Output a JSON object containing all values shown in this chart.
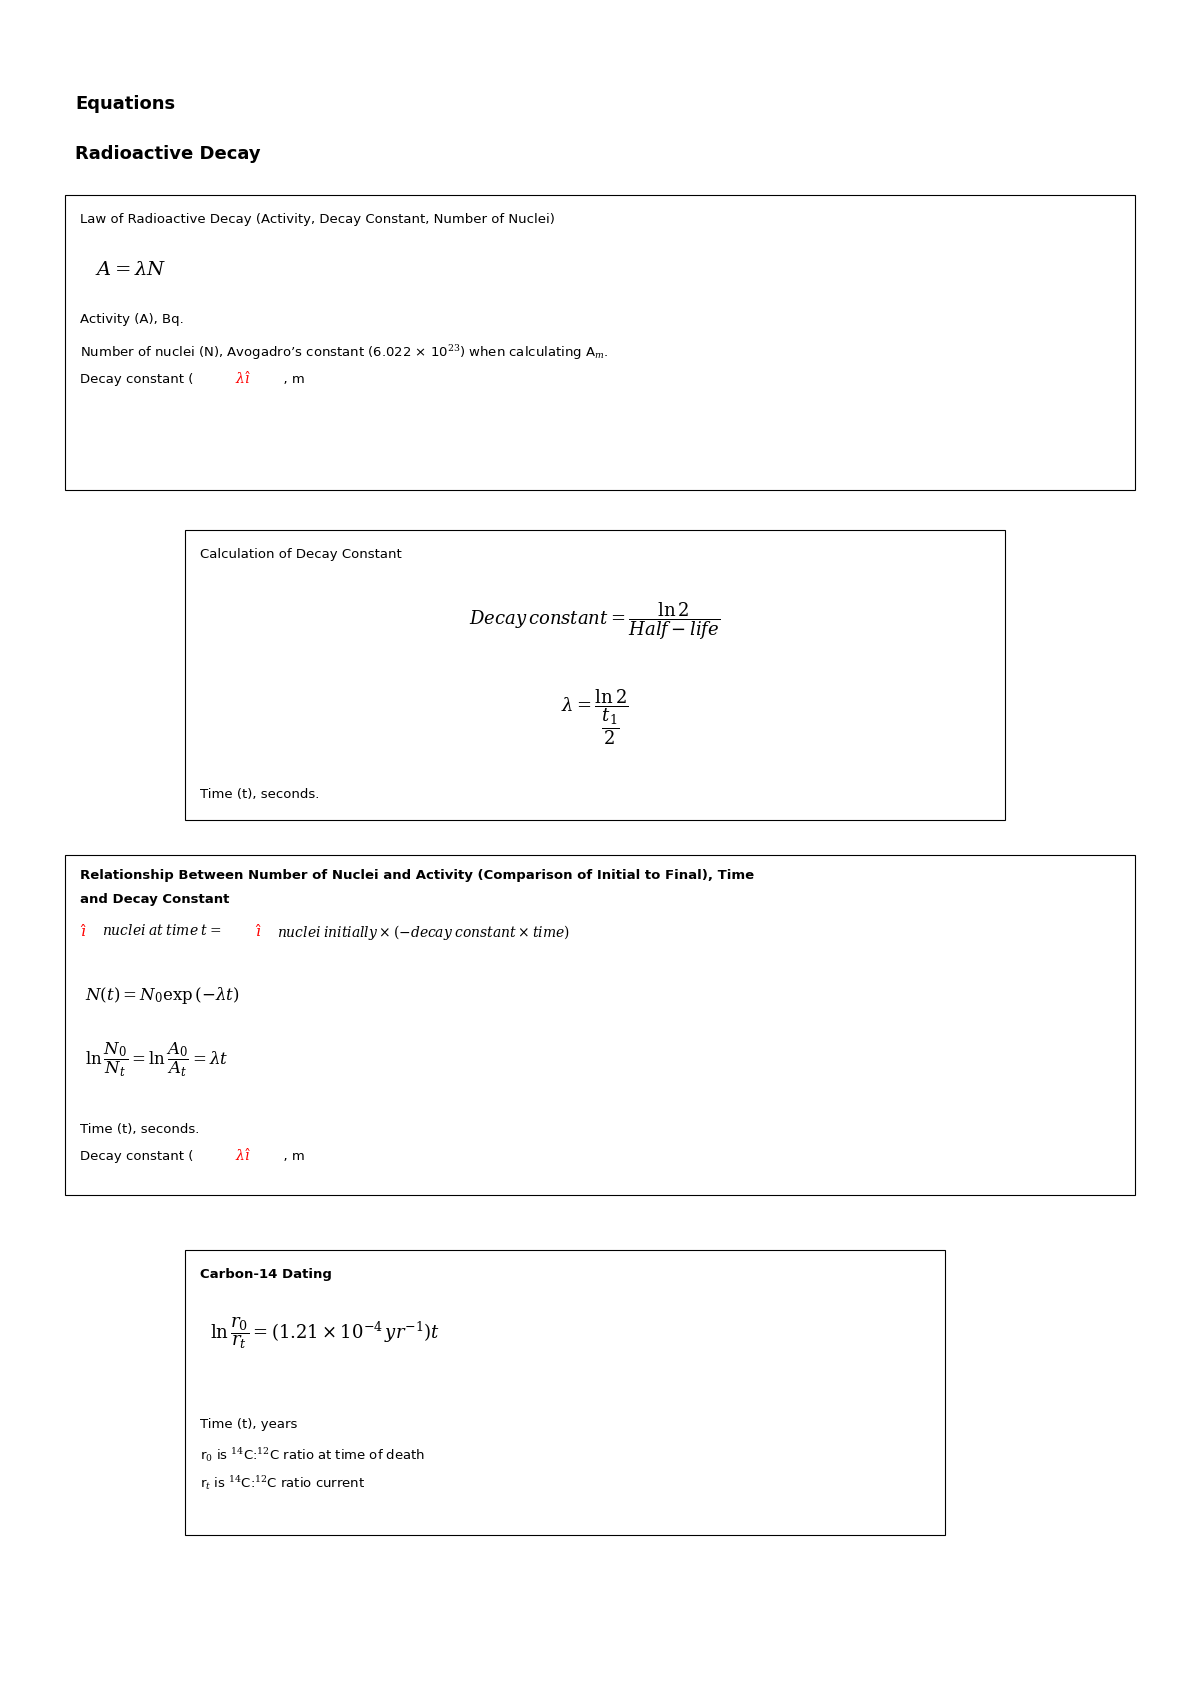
{
  "bg_color": "#ffffff",
  "title1": "Equations",
  "title2": "Radioactive Decay",
  "box1_title": "Law of Radioactive Decay (Activity, Decay Constant, Number of Nuclei)",
  "box1_line1": "Activity (A), Bq.",
  "box1_line2": "Number of nuclei (N), Avogadro’s constant (6.022 × 10$^{23}$) when calculating A$_m$.",
  "box2_title": "Calculation of Decay Constant",
  "box2_line1": "Time (t), seconds.",
  "box3_title1": "Relationship Between Number of Nuclei and Activity (Comparison of Initial to Final), Time",
  "box3_title2": "and Decay Constant",
  "box3_line1": "Time (t), seconds.",
  "box4_title": "Carbon-14 Dating",
  "box4_line1": "Time (t), years",
  "box4_line2": "r$_0$ is $^{14}$C:$^{12}$C ratio at time of death",
  "box4_line3": "r$_t$ is $^{14}$C:$^{12}$C ratio current",
  "fig_w": 12.0,
  "fig_h": 16.98,
  "dpi": 100
}
